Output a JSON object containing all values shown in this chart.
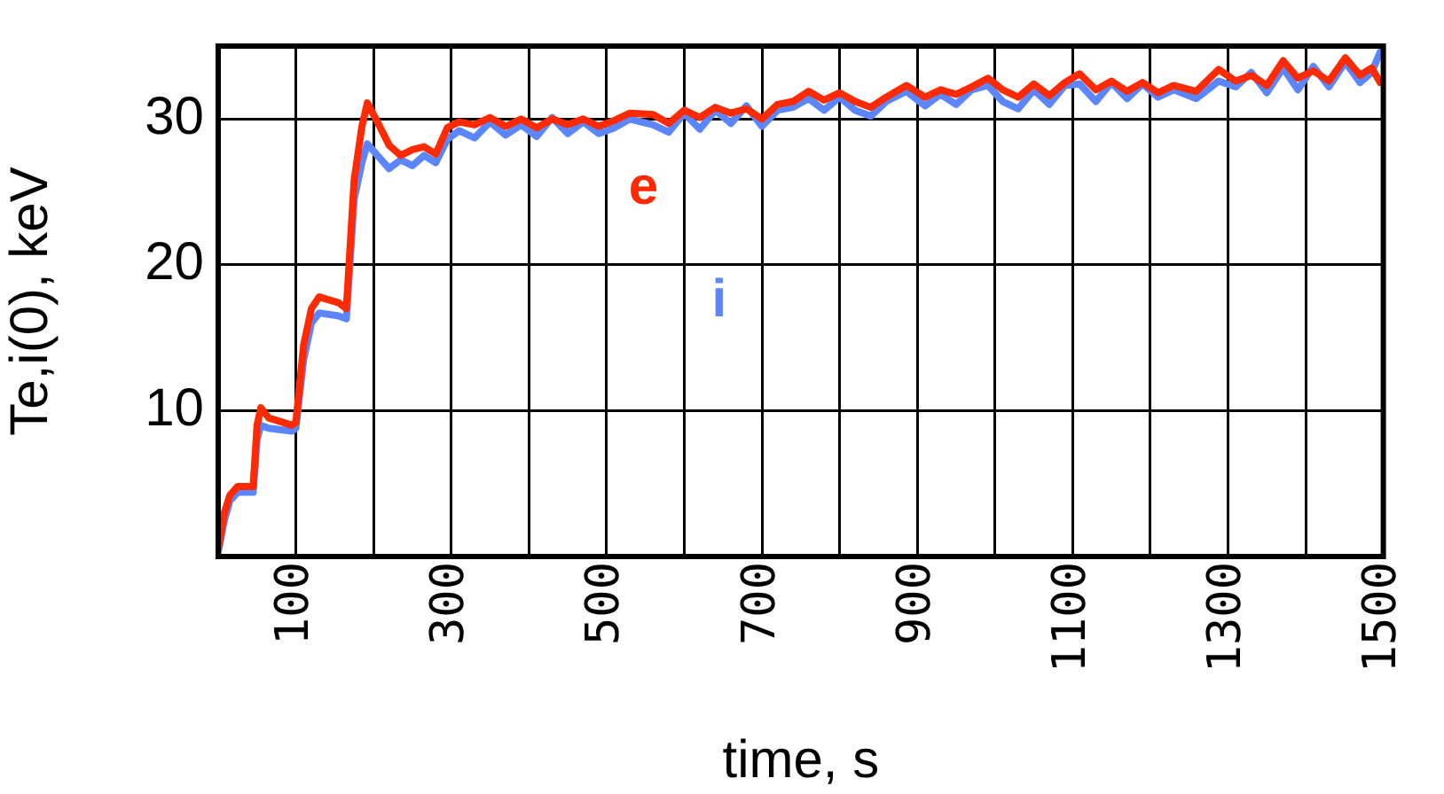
{
  "chart_data": {
    "type": "line",
    "xlabel": "time, s",
    "ylabel": "Te,i(0), keV",
    "x": [
      0,
      8,
      15,
      25,
      45,
      50,
      55,
      65,
      95,
      100,
      110,
      120,
      130,
      155,
      165,
      175,
      185,
      192,
      205,
      220,
      235,
      250,
      265,
      280,
      295,
      310,
      330,
      350,
      370,
      390,
      410,
      430,
      450,
      470,
      490,
      510,
      530,
      560,
      580,
      600,
      620,
      640,
      660,
      680,
      700,
      720,
      740,
      760,
      780,
      800,
      820,
      840,
      860,
      886,
      910,
      930,
      950,
      970,
      991,
      1010,
      1030,
      1050,
      1070,
      1090,
      1109,
      1130,
      1150,
      1170,
      1190,
      1210,
      1230,
      1259,
      1288,
      1310,
      1330,
      1350,
      1371,
      1390,
      1410,
      1430,
      1451,
      1470,
      1485,
      1496
    ],
    "series": [
      {
        "name": "e",
        "color": "#ff2a00",
        "values": [
          0.5,
          3.0,
          4.2,
          4.8,
          4.8,
          9.0,
          10.2,
          9.5,
          9.0,
          9.2,
          14.5,
          17.0,
          17.8,
          17.4,
          17.0,
          25.8,
          29.5,
          31.1,
          29.8,
          28.2,
          27.5,
          27.9,
          28.1,
          27.6,
          29.4,
          29.8,
          29.6,
          30.1,
          29.5,
          30.0,
          29.4,
          30.0,
          29.6,
          30.0,
          29.5,
          29.9,
          30.4,
          30.3,
          29.7,
          30.6,
          30.1,
          30.8,
          30.4,
          30.7,
          30.0,
          31.0,
          31.2,
          31.9,
          31.3,
          31.8,
          31.2,
          30.8,
          31.5,
          32.3,
          31.5,
          32.0,
          31.7,
          32.2,
          32.8,
          32.0,
          31.5,
          32.4,
          31.6,
          32.5,
          33.1,
          32.0,
          32.6,
          31.9,
          32.5,
          31.8,
          32.3,
          31.9,
          33.4,
          32.6,
          33.0,
          32.3,
          34.0,
          32.8,
          33.3,
          32.6,
          34.2,
          33.0,
          33.5,
          32.5
        ]
      },
      {
        "name": "i",
        "color": "#5b86ff",
        "values": [
          0.3,
          2.5,
          3.8,
          4.4,
          4.4,
          8.0,
          9.0,
          8.8,
          8.6,
          8.8,
          13.5,
          16.0,
          16.7,
          16.5,
          16.3,
          24.5,
          27.0,
          28.3,
          27.5,
          26.6,
          27.2,
          26.8,
          27.5,
          27.0,
          28.6,
          29.2,
          28.7,
          29.8,
          28.9,
          29.6,
          28.8,
          30.1,
          29.0,
          29.8,
          29.0,
          29.4,
          30.0,
          29.6,
          29.1,
          30.4,
          29.3,
          30.6,
          29.7,
          30.9,
          29.5,
          30.6,
          30.8,
          31.4,
          30.6,
          31.5,
          30.6,
          30.2,
          31.2,
          31.9,
          30.9,
          31.7,
          31.0,
          32.0,
          32.3,
          31.2,
          30.7,
          32.0,
          31.0,
          32.3,
          32.4,
          31.2,
          32.5,
          31.4,
          32.4,
          31.5,
          32.0,
          31.4,
          32.6,
          32.2,
          33.2,
          31.8,
          33.5,
          32.0,
          33.6,
          32.2,
          33.9,
          32.5,
          33.2,
          34.6
        ]
      }
    ],
    "xlim": [
      0,
      1500
    ],
    "xticks": [
      {
        "value": 0,
        "label": null
      },
      100,
      {
        "value": 200,
        "label": null
      },
      300,
      {
        "value": 400,
        "label": null
      },
      500,
      {
        "value": 600,
        "label": null
      },
      700,
      {
        "value": 800,
        "label": null
      },
      900,
      {
        "value": 1000,
        "label": null
      },
      1100,
      {
        "value": 1200,
        "label": null
      },
      1300,
      {
        "value": 1400,
        "label": null
      },
      1500
    ],
    "ylim": [
      0,
      35
    ],
    "yticks": [
      10,
      20,
      30
    ],
    "grid": true,
    "legend": false,
    "marker": "none",
    "line_style": "solid"
  }
}
